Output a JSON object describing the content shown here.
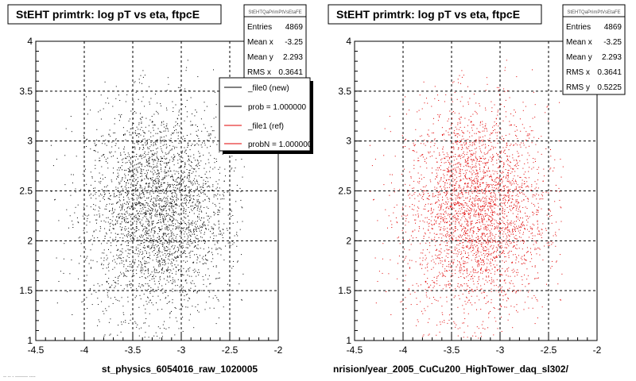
{
  "colors": {
    "new": "#000000",
    "ref": "#e00000"
  },
  "footer_text": "-- -- - -------- ----",
  "chart_data": [
    {
      "type": "scatter",
      "title": "StEHT primtrk: log pT vs eta, ftpcE",
      "xlabel": "st_physics_6054016_raw_1020005",
      "ylabel": "",
      "xlim": [
        -4.5,
        -2
      ],
      "ylim": [
        1,
        4
      ],
      "xticks": [
        "-4.5",
        "-4",
        "-3.5",
        "-3",
        "-2.5",
        "-2"
      ],
      "yticks": [
        "1",
        "1.5",
        "2",
        "2.5",
        "3",
        "3.5",
        "4"
      ],
      "grid": true,
      "color": "#000000",
      "stats": {
        "header": "StEHTQaPrimPtVsEtaFE",
        "rows": [
          {
            "label": "Entries",
            "value": "4869"
          },
          {
            "label": "Mean x",
            "value": "-3.25"
          },
          {
            "label": "Mean y",
            "value": "2.293"
          },
          {
            "label": "RMS x",
            "value": "0.3641"
          }
        ]
      },
      "legend": {
        "position": "top-right",
        "entries": [
          {
            "label": "_file0 (new)",
            "color": "#000000"
          },
          {
            "label": "prob = 1.000000",
            "color": "#000000"
          },
          {
            "label": "_file1 (ref)",
            "color": "#e00000"
          },
          {
            "label": "probN = 1.000000",
            "color": "#e00000"
          }
        ]
      },
      "distribution": {
        "n": 4869,
        "mean_x": -3.25,
        "mean_y": 2.293,
        "rms_x": 0.3641,
        "rms_y": 0.5225
      }
    },
    {
      "type": "scatter",
      "title": "StEHT primtrk: log pT vs eta, ftpcE",
      "xlabel": "nrision/year_2005_CuCu200_HighTower_daq_sl302/",
      "ylabel": "",
      "xlim": [
        -4.5,
        -2
      ],
      "ylim": [
        1,
        4
      ],
      "xticks": [
        "-4.5",
        "-4",
        "-3.5",
        "-3",
        "-2.5",
        "-2"
      ],
      "yticks": [
        "1",
        "1.5",
        "2",
        "2.5",
        "3",
        "3.5",
        "4"
      ],
      "grid": true,
      "color": "#e00000",
      "stats": {
        "header": "StEHTQaPrimPtVsEtaFE",
        "rows": [
          {
            "label": "Entries",
            "value": "4869"
          },
          {
            "label": "Mean x",
            "value": "-3.25"
          },
          {
            "label": "Mean y",
            "value": "2.293"
          },
          {
            "label": "RMS x",
            "value": "0.3641"
          },
          {
            "label": "RMS y",
            "value": "0.5225"
          }
        ]
      },
      "distribution": {
        "n": 4869,
        "mean_x": -3.25,
        "mean_y": 2.293,
        "rms_x": 0.3641,
        "rms_y": 0.5225
      }
    }
  ]
}
